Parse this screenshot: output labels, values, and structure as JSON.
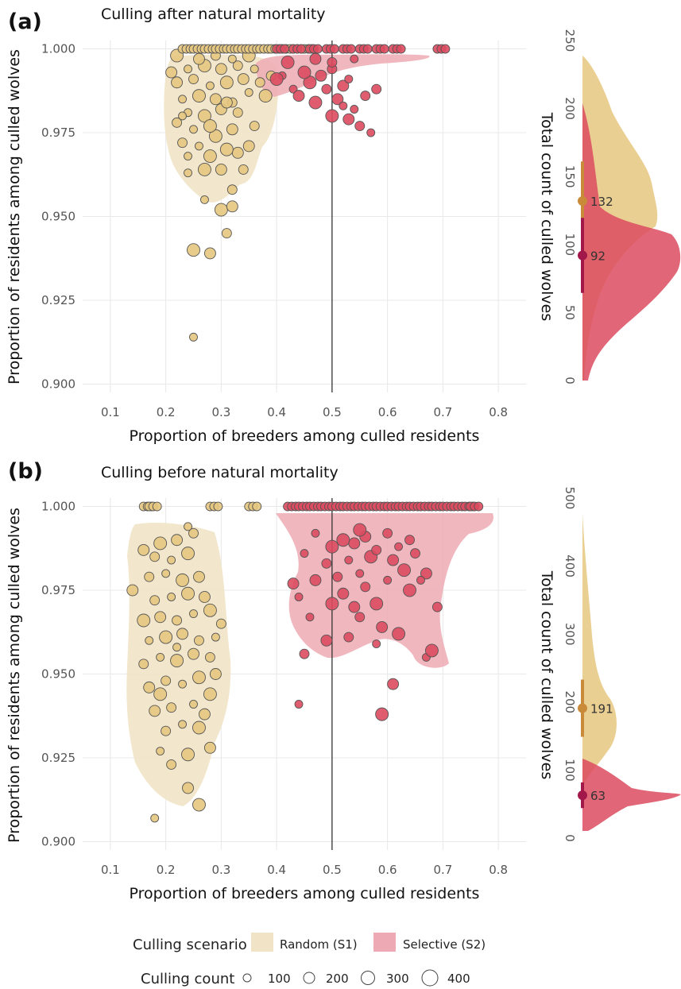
{
  "colors": {
    "random": "#e6c77f",
    "random_fill": "#f1e4c6",
    "random_median": "#c98a3a",
    "selective": "#dc4b5f",
    "selective_fill": "#eeaab4",
    "selective_median": "#a3184a",
    "point_edge": "#555555",
    "grid": "#e8e8e8",
    "vline": "#333333"
  },
  "chart_data": [
    {
      "type": "scatter",
      "panel": "(a)",
      "title": "Culling after natural mortality",
      "xlabel": "Proportion of breeders among culled residents",
      "ylabel": "Proportion of residents among culled wolves",
      "xlim": [
        0.05,
        0.85
      ],
      "ylim": [
        0.8975,
        1.0025
      ],
      "xticks": [
        0.1,
        0.2,
        0.3,
        0.4,
        0.5,
        0.6,
        0.7,
        0.8
      ],
      "xtick_labels": [
        "0.1",
        "0.2",
        "0.3",
        "0.4",
        "0.5",
        "0.6",
        "0.7",
        "0.8"
      ],
      "yticks": [
        0.9,
        0.925,
        0.95,
        0.975,
        1.0
      ],
      "ytick_labels": [
        "0.900",
        "0.925",
        "0.950",
        "0.975",
        "1.000"
      ],
      "vline_x": 0.5,
      "grid": true,
      "series": [
        {
          "name": "Random (S1)",
          "points": [
            [
              0.25,
              0.914
            ],
            [
              0.25,
              0.94
            ],
            [
              0.28,
              0.939
            ],
            [
              0.31,
              0.945
            ],
            [
              0.27,
              0.955
            ],
            [
              0.3,
              0.952
            ],
            [
              0.32,
              0.953
            ],
            [
              0.32,
              0.958
            ],
            [
              0.24,
              0.963
            ],
            [
              0.27,
              0.964
            ],
            [
              0.3,
              0.964
            ],
            [
              0.34,
              0.964
            ],
            [
              0.24,
              0.968
            ],
            [
              0.28,
              0.968
            ],
            [
              0.33,
              0.969
            ],
            [
              0.23,
              0.972
            ],
            [
              0.26,
              0.971
            ],
            [
              0.31,
              0.97
            ],
            [
              0.35,
              0.971
            ],
            [
              0.22,
              0.978
            ],
            [
              0.25,
              0.976
            ],
            [
              0.29,
              0.974
            ],
            [
              0.32,
              0.976
            ],
            [
              0.36,
              0.977
            ],
            [
              0.24,
              0.981
            ],
            [
              0.27,
              0.98
            ],
            [
              0.3,
              0.982
            ],
            [
              0.33,
              0.981
            ],
            [
              0.23,
              0.985
            ],
            [
              0.26,
              0.986
            ],
            [
              0.29,
              0.985
            ],
            [
              0.32,
              0.984
            ],
            [
              0.35,
              0.987
            ],
            [
              0.38,
              0.986
            ],
            [
              0.22,
              0.99
            ],
            [
              0.25,
              0.991
            ],
            [
              0.28,
              0.989
            ],
            [
              0.31,
              0.99
            ],
            [
              0.34,
              0.991
            ],
            [
              0.37,
              0.99
            ],
            [
              0.24,
              0.994
            ],
            [
              0.27,
              0.995
            ],
            [
              0.3,
              0.994
            ],
            [
              0.33,
              0.995
            ],
            [
              0.36,
              0.994
            ],
            [
              0.22,
              0.998
            ],
            [
              0.26,
              0.997
            ],
            [
              0.29,
              0.998
            ],
            [
              0.32,
              0.997
            ],
            [
              0.35,
              0.998
            ],
            [
              0.21,
              0.993
            ],
            [
              0.39,
              0.992
            ],
            [
              0.23,
              0.98
            ],
            [
              0.28,
              0.977
            ],
            [
              0.31,
              0.984
            ]
          ],
          "points_top": [
            0.23,
            0.25,
            0.27,
            0.29,
            0.31,
            0.33,
            0.35,
            0.37,
            0.39,
            0.41,
            0.43,
            0.45
          ]
        },
        {
          "name": "Selective (S2)",
          "points": [
            [
              0.57,
              0.975
            ],
            [
              0.5,
              0.98
            ],
            [
              0.53,
              0.979
            ],
            [
              0.55,
              0.977
            ],
            [
              0.54,
              0.982
            ],
            [
              0.47,
              0.984
            ],
            [
              0.51,
              0.985
            ],
            [
              0.56,
              0.986
            ],
            [
              0.43,
              0.988
            ],
            [
              0.46,
              0.99
            ],
            [
              0.52,
              0.989
            ],
            [
              0.58,
              0.988
            ],
            [
              0.41,
              0.992
            ],
            [
              0.45,
              0.993
            ],
            [
              0.48,
              0.992
            ],
            [
              0.5,
              0.994
            ],
            [
              0.53,
              0.991
            ],
            [
              0.42,
              0.996
            ],
            [
              0.47,
              0.997
            ],
            [
              0.5,
              0.996
            ],
            [
              0.54,
              0.997
            ],
            [
              0.4,
              0.991
            ],
            [
              0.44,
              0.986
            ],
            [
              0.49,
              0.988
            ],
            [
              0.52,
              0.983
            ]
          ],
          "points_top": [
            0.4,
            0.43,
            0.46,
            0.49,
            0.52,
            0.55,
            0.58,
            0.61,
            0.69
          ]
        }
      ],
      "side": {
        "ylabel": "Total count of culled wolves",
        "yticks": [
          0,
          50,
          100,
          150,
          200,
          250
        ],
        "ylim": [
          0,
          250
        ],
        "medians": [
          {
            "series": "Random (S1)",
            "value": 132,
            "label": "132"
          },
          {
            "series": "Selective (S2)",
            "value": 92,
            "label": "92"
          }
        ]
      }
    },
    {
      "type": "scatter",
      "panel": "(b)",
      "title": "Culling before natural mortality",
      "xlabel": "Proportion of breeders among culled residents",
      "ylabel": "Proportion of residents among culled wolves",
      "xlim": [
        0.05,
        0.85
      ],
      "ylim": [
        0.8975,
        1.0025
      ],
      "xticks": [
        0.1,
        0.2,
        0.3,
        0.4,
        0.5,
        0.6,
        0.7,
        0.8
      ],
      "xtick_labels": [
        "0.1",
        "0.2",
        "0.3",
        "0.4",
        "0.5",
        "0.6",
        "0.7",
        "0.8"
      ],
      "yticks": [
        0.9,
        0.925,
        0.95,
        0.975,
        1.0
      ],
      "ytick_labels": [
        "0.900",
        "0.925",
        "0.950",
        "0.975",
        "1.000"
      ],
      "vline_x": 0.5,
      "grid": true,
      "series": [
        {
          "name": "Random (S1)",
          "points": [
            [
              0.18,
              0.907
            ],
            [
              0.26,
              0.911
            ],
            [
              0.24,
              0.916
            ],
            [
              0.21,
              0.923
            ],
            [
              0.19,
              0.927
            ],
            [
              0.24,
              0.926
            ],
            [
              0.28,
              0.928
            ],
            [
              0.2,
              0.933
            ],
            [
              0.23,
              0.935
            ],
            [
              0.26,
              0.934
            ],
            [
              0.18,
              0.939
            ],
            [
              0.21,
              0.94
            ],
            [
              0.25,
              0.941
            ],
            [
              0.28,
              0.944
            ],
            [
              0.17,
              0.946
            ],
            [
              0.2,
              0.948
            ],
            [
              0.23,
              0.947
            ],
            [
              0.26,
              0.949
            ],
            [
              0.29,
              0.95
            ],
            [
              0.16,
              0.953
            ],
            [
              0.19,
              0.955
            ],
            [
              0.22,
              0.954
            ],
            [
              0.25,
              0.956
            ],
            [
              0.28,
              0.955
            ],
            [
              0.17,
              0.96
            ],
            [
              0.2,
              0.961
            ],
            [
              0.23,
              0.962
            ],
            [
              0.26,
              0.96
            ],
            [
              0.29,
              0.961
            ],
            [
              0.16,
              0.966
            ],
            [
              0.19,
              0.967
            ],
            [
              0.22,
              0.966
            ],
            [
              0.25,
              0.968
            ],
            [
              0.28,
              0.969
            ],
            [
              0.14,
              0.975
            ],
            [
              0.18,
              0.972
            ],
            [
              0.21,
              0.973
            ],
            [
              0.24,
              0.974
            ],
            [
              0.27,
              0.973
            ],
            [
              0.17,
              0.979
            ],
            [
              0.2,
              0.98
            ],
            [
              0.23,
              0.978
            ],
            [
              0.26,
              0.979
            ],
            [
              0.18,
              0.985
            ],
            [
              0.21,
              0.984
            ],
            [
              0.24,
              0.986
            ],
            [
              0.22,
              0.99
            ],
            [
              0.25,
              0.992
            ],
            [
              0.24,
              0.994
            ],
            [
              0.19,
              0.989
            ],
            [
              0.16,
              0.987
            ],
            [
              0.3,
              0.965
            ],
            [
              0.22,
              0.958
            ],
            [
              0.19,
              0.944
            ],
            [
              0.27,
              0.938
            ]
          ],
          "points_top": [
            0.16,
            0.17,
            0.28,
            0.35
          ]
        },
        {
          "name": "Selective (S2)",
          "points": [
            [
              0.44,
              0.941
            ],
            [
              0.59,
              0.938
            ],
            [
              0.61,
              0.947
            ],
            [
              0.45,
              0.956
            ],
            [
              0.67,
              0.955
            ],
            [
              0.68,
              0.957
            ],
            [
              0.49,
              0.96
            ],
            [
              0.53,
              0.961
            ],
            [
              0.58,
              0.959
            ],
            [
              0.62,
              0.962
            ],
            [
              0.59,
              0.964
            ],
            [
              0.55,
              0.967
            ],
            [
              0.46,
              0.967
            ],
            [
              0.5,
              0.971
            ],
            [
              0.54,
              0.97
            ],
            [
              0.69,
              0.97
            ],
            [
              0.44,
              0.973
            ],
            [
              0.58,
              0.971
            ],
            [
              0.52,
              0.974
            ],
            [
              0.56,
              0.976
            ],
            [
              0.6,
              0.978
            ],
            [
              0.64,
              0.975
            ],
            [
              0.47,
              0.978
            ],
            [
              0.51,
              0.979
            ],
            [
              0.55,
              0.98
            ],
            [
              0.63,
              0.981
            ],
            [
              0.67,
              0.98
            ],
            [
              0.49,
              0.983
            ],
            [
              0.53,
              0.984
            ],
            [
              0.57,
              0.985
            ],
            [
              0.61,
              0.984
            ],
            [
              0.65,
              0.986
            ],
            [
              0.45,
              0.986
            ],
            [
              0.5,
              0.988
            ],
            [
              0.54,
              0.989
            ],
            [
              0.58,
              0.987
            ],
            [
              0.62,
              0.988
            ],
            [
              0.52,
              0.99
            ],
            [
              0.56,
              0.991
            ],
            [
              0.6,
              0.992
            ],
            [
              0.47,
              0.992
            ],
            [
              0.55,
              0.993
            ],
            [
              0.43,
              0.977
            ],
            [
              0.64,
              0.99
            ],
            [
              0.66,
              0.978
            ]
          ],
          "points_top": [
            0.42,
            0.44,
            0.46,
            0.48,
            0.5,
            0.52,
            0.54,
            0.56,
            0.58,
            0.6,
            0.62,
            0.64,
            0.66,
            0.68,
            0.7,
            0.72,
            0.74,
            0.75
          ]
        }
      ],
      "side": {
        "ylabel": "Total count of culled wolves",
        "yticks": [
          0,
          100,
          200,
          300,
          400,
          500
        ],
        "ylim": [
          0,
          500
        ],
        "medians": [
          {
            "series": "Random (S1)",
            "value": 191,
            "label": "191"
          },
          {
            "series": "Selective (S2)",
            "value": 63,
            "label": "63"
          }
        ]
      }
    }
  ],
  "legend": {
    "scenario_title": "Culling scenario",
    "scenario_items": [
      "Random (S1)",
      "Selective (S2)"
    ],
    "count_title": "Culling count",
    "count_items": [
      "100",
      "200",
      "300",
      "400"
    ]
  }
}
